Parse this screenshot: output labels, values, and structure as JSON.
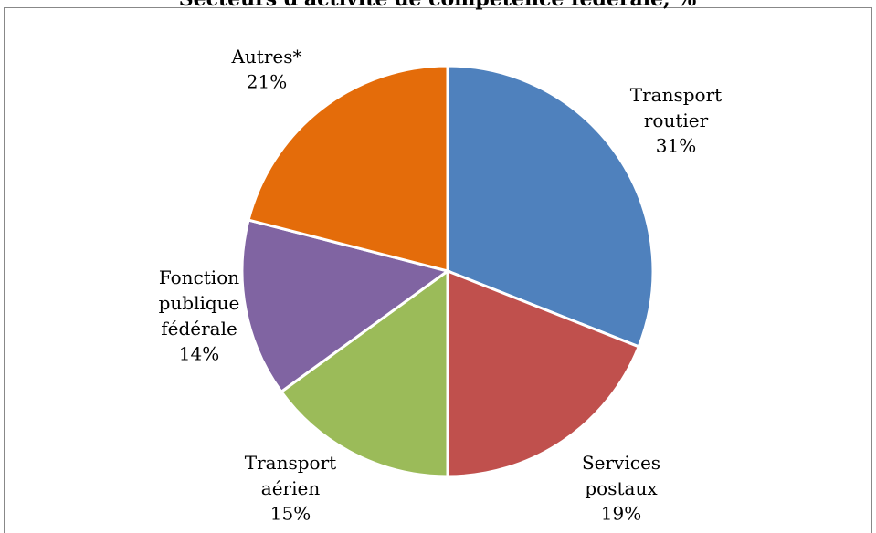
{
  "chart_data": {
    "type": "pie",
    "title": "Secteurs d'activité de compétence fédérale, %",
    "categories": [
      "Transport routier",
      "Services postaux",
      "Transport aérien",
      "Fonction publique fédérale",
      "Autres*"
    ],
    "values": [
      31,
      19,
      15,
      14,
      21
    ],
    "value_labels": [
      "31%",
      "19%",
      "15%",
      "14%",
      "21%"
    ],
    "colors": [
      "#4f81bd",
      "#c0504d",
      "#9bbb59",
      "#8064a2",
      "#e46c0a"
    ]
  }
}
